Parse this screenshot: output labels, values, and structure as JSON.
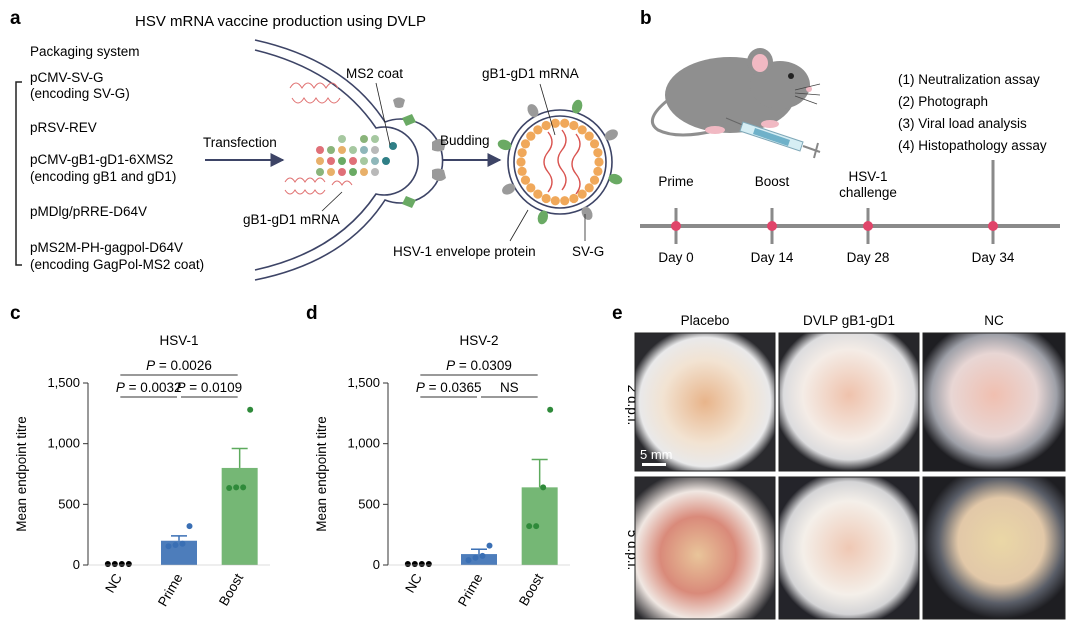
{
  "panels": {
    "a": {
      "letter": "a",
      "title": "HSV mRNA vaccine production using DVLP",
      "packaging_title": "Packaging system",
      "plasmids": [
        {
          "line1": "pCMV-SV-G",
          "line2": "(encoding SV-G)"
        },
        {
          "line1": "pRSV-REV",
          "line2": ""
        },
        {
          "line1": "pCMV-gB1-gD1-6XMS2",
          "line2": "(encoding gB1 and gD1)"
        },
        {
          "line1": "pMDlg/pRRE-D64V",
          "line2": ""
        },
        {
          "line1": "pMS2M-PH-gagpol-D64V",
          "line2": "(encoding GagPol-MS2 coat)"
        }
      ],
      "transfection": "Transfection",
      "budding": "Budding",
      "ms2_coat": "MS2 coat",
      "mrna_cell": "gB1-gD1 mRNA",
      "mrna_particle": "gB1-gD1 mRNA",
      "envelope_protein": "HSV-1 envelope protein",
      "svg_label": "SV-G",
      "colors": {
        "membrane": "#3d4466",
        "orange": "#f0a85a",
        "green": "#6aaa64",
        "gray": "#9a9a9a",
        "red": "#d9534f",
        "teal": "#2f7f86"
      }
    },
    "b": {
      "letter": "b",
      "assays": [
        "(1) Neutralization assay",
        "(2) Photograph",
        "(3) Viral load analysis",
        "(4) Histopathology assay"
      ],
      "events": [
        {
          "label": "Prime",
          "label2": "",
          "day": "Day 0"
        },
        {
          "label": "Boost",
          "label2": "",
          "day": "Day 14"
        },
        {
          "label": "HSV-1",
          "label2": "challenge",
          "day": "Day 28"
        },
        {
          "label": "",
          "label2": "",
          "day": "Day 34"
        }
      ],
      "colors": {
        "axis": "#8a8a8a",
        "dot": "#e0456a",
        "mouse": "#8f8f8f"
      }
    },
    "c": {
      "letter": "c"
    },
    "d": {
      "letter": "d"
    },
    "e": {
      "letter": "e",
      "columns": [
        "Placebo",
        "DVLP gB1-gD1",
        "NC"
      ],
      "rows": [
        "2 d.p.i.",
        "5 d.p.i."
      ],
      "scale_bar": "5 mm"
    }
  },
  "chart_data": [
    {
      "type": "bar",
      "id": "c",
      "title": "HSV-1",
      "ylabel": "Mean endpoint titre",
      "categories": [
        "NC",
        "Prime",
        "Boost"
      ],
      "values": [
        0,
        200,
        800
      ],
      "errors": [
        0,
        40,
        160
      ],
      "points": [
        [
          0,
          0,
          0,
          0
        ],
        [
          155,
          165,
          175,
          320
        ],
        [
          635,
          640,
          640,
          1280
        ]
      ],
      "colors": [
        "#000000",
        "#3a6fb4",
        "#5daa5d"
      ],
      "ylim": [
        0,
        1500
      ],
      "yticks": [
        0,
        500,
        1000,
        1500
      ],
      "ytick_labels": [
        "0",
        "500",
        "1,000",
        "1,500"
      ],
      "grid": false,
      "annotations": [
        {
          "prefix": "P",
          "text": " = 0.0026",
          "from": 0,
          "to": 2,
          "level": 2
        },
        {
          "prefix": "P",
          "text": " = 0.0032",
          "from": 0,
          "to": 1,
          "level": 1
        },
        {
          "prefix": "P",
          "text": " = 0.0109",
          "from": 1,
          "to": 2,
          "level": 1
        }
      ]
    },
    {
      "type": "bar",
      "id": "d",
      "title": "HSV-2",
      "ylabel": "Mean endpoint titre",
      "categories": [
        "NC",
        "Prime",
        "Boost"
      ],
      "values": [
        0,
        90,
        640
      ],
      "errors": [
        0,
        40,
        230
      ],
      "points": [
        [
          0,
          0,
          0,
          0
        ],
        [
          40,
          60,
          75,
          160
        ],
        [
          320,
          320,
          640,
          1280
        ]
      ],
      "colors": [
        "#000000",
        "#3a6fb4",
        "#5daa5d"
      ],
      "ylim": [
        0,
        1500
      ],
      "yticks": [
        0,
        500,
        1000,
        1500
      ],
      "ytick_labels": [
        "0",
        "500",
        "1,000",
        "1,500"
      ],
      "grid": false,
      "annotations": [
        {
          "prefix": "P",
          "text": " = 0.0309",
          "from": 0,
          "to": 2,
          "level": 2
        },
        {
          "prefix": "P",
          "text": " = 0.0365",
          "from": 0,
          "to": 1,
          "level": 1
        },
        {
          "prefix": "",
          "text": "NS",
          "from": 1,
          "to": 2,
          "level": 1
        }
      ]
    }
  ]
}
